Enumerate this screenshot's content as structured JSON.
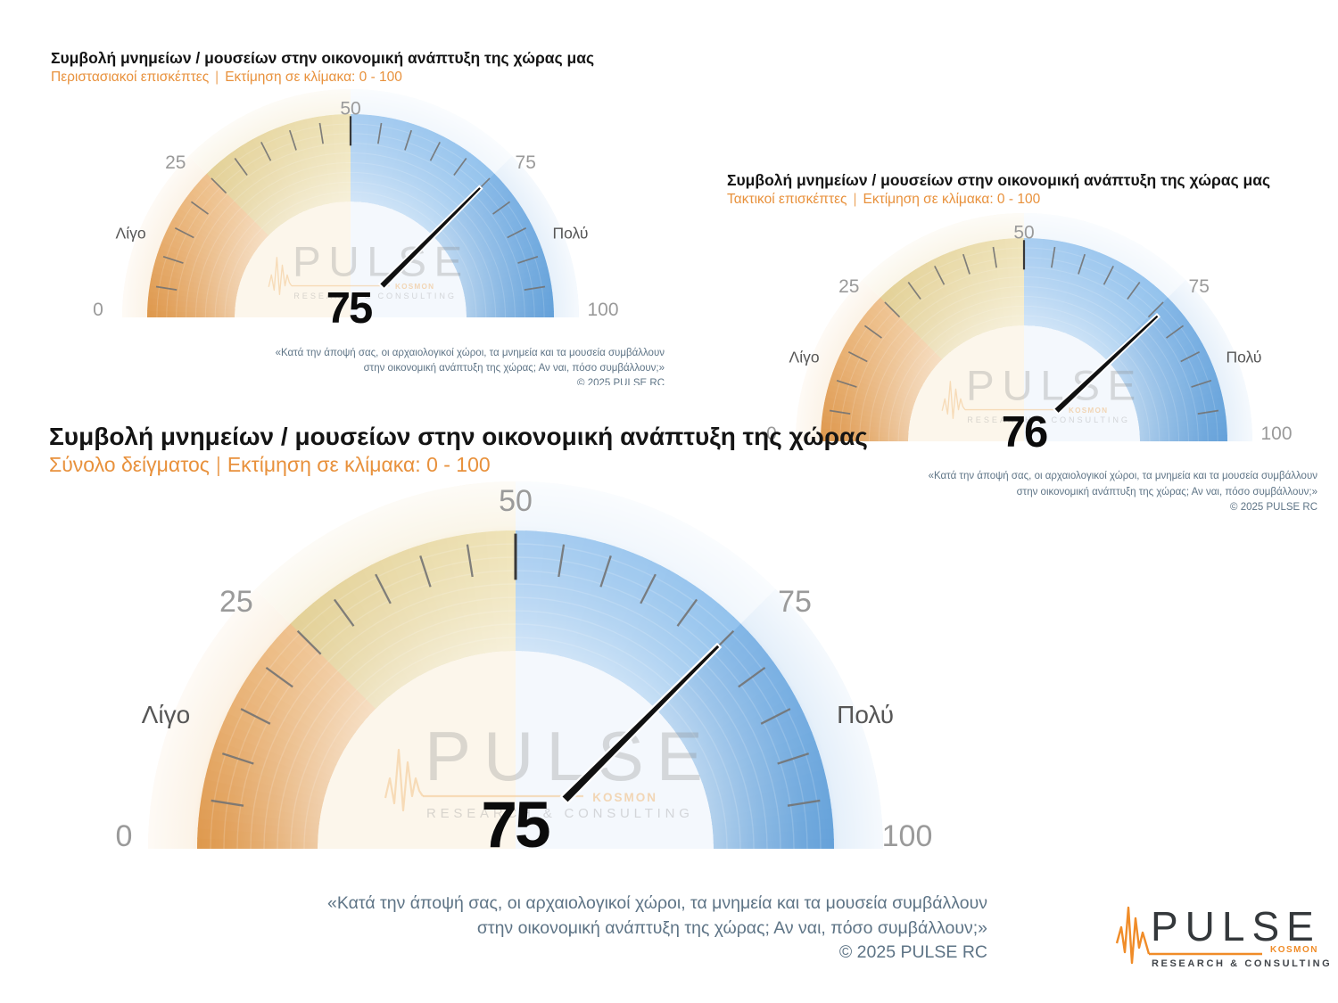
{
  "ui": {
    "subtitle_separator": "|"
  },
  "watermark": {
    "brand": "PULSE",
    "sub": "KOSMON",
    "tagline": "RESEARCH & CONSULTING"
  },
  "logo": {
    "brand": "PULSE",
    "sub": "KOSMON",
    "tagline": "RESEARCH & CONSULTING",
    "accent_color": "#f08c28",
    "text_color": "#34383b"
  },
  "footnote": {
    "line1": "«Κατά την άποψή σας, οι αρχαιολογικοί χώροι, τα μνημεία και τα μουσεία συμβάλλουν",
    "line2": "στην οικονομική ανάπτυξη της χώρας; Αν ναι, πόσο συμβάλλουν;»",
    "line3": "©  2025  PULSE RC"
  },
  "style": {
    "title_color": "#141414",
    "subtitle_color": "#e8913c",
    "footnote_color": "#5e7486",
    "value_color": "#0b0b0b",
    "needle_color": "#111111",
    "tick_color": "#737373",
    "major_tick_color": "#383838",
    "axis_label_color": "#9a9a9a",
    "end_label_color": "#565656",
    "interior_left": "#fcf6eb",
    "interior_right": "#f4f8fd",
    "band_stops": [
      [
        0,
        "#dd9446"
      ],
      [
        24.999,
        "#eec08b"
      ],
      [
        25,
        "#e2cf93"
      ],
      [
        49.999,
        "#eee2b6"
      ],
      [
        50,
        "#a6ccf0"
      ],
      [
        74.999,
        "#8fc0ec"
      ],
      [
        75,
        "#7eb3e5"
      ],
      [
        100,
        "#5f9ed8"
      ]
    ],
    "pale_segments": [
      {
        "from": 0,
        "to": 25,
        "color": "#fbf0e1"
      },
      {
        "from": 25,
        "to": 50,
        "color": "#f9f3e3"
      },
      {
        "from": 50,
        "to": 75,
        "color": "#eef5fc"
      },
      {
        "from": 75,
        "to": 100,
        "color": "#dfecf9"
      }
    ]
  },
  "chart_data": [
    {
      "type": "gauge",
      "title": "Συμβολή μνημείων / μουσείων στην οικονομική ανάπτυξη της χώρας μας",
      "group_label": "Περιστασιακοί επισκέπτες",
      "scale_label": "Εκτίμηση σε κλίμακα:  0 - 100",
      "value": 75,
      "min": 0,
      "max": 100,
      "axis_labels": [
        "0",
        "25",
        "50",
        "75",
        "100"
      ],
      "minor_tick_step": 5,
      "end_labels": {
        "low": "Λίγο",
        "high": "Πολύ"
      },
      "segments": [
        {
          "from": 0,
          "to": 25,
          "color": "orange"
        },
        {
          "from": 25,
          "to": 50,
          "color": "wheat"
        },
        {
          "from": 50,
          "to": 75,
          "color": "light-blue"
        },
        {
          "from": 75,
          "to": 100,
          "color": "blue"
        }
      ]
    },
    {
      "type": "gauge",
      "title": "Συμβολή μνημείων / μουσείων στην οικονομική ανάπτυξη της χώρας μας",
      "group_label": "Τακτικοί επισκέπτες",
      "scale_label": "Εκτίμηση σε κλίμακα:  0 - 100",
      "value": 76,
      "min": 0,
      "max": 100,
      "axis_labels": [
        "0",
        "25",
        "50",
        "75",
        "100"
      ],
      "minor_tick_step": 5,
      "end_labels": {
        "low": "Λίγο",
        "high": "Πολύ"
      },
      "segments": [
        {
          "from": 0,
          "to": 25,
          "color": "orange"
        },
        {
          "from": 25,
          "to": 50,
          "color": "wheat"
        },
        {
          "from": 50,
          "to": 75,
          "color": "light-blue"
        },
        {
          "from": 75,
          "to": 100,
          "color": "blue"
        }
      ]
    },
    {
      "type": "gauge",
      "title": "Συμβολή μνημείων / μουσείων στην οικονομική ανάπτυξη της χώρας",
      "group_label": "Σύνολο δείγματος",
      "scale_label": "Εκτίμηση σε κλίμακα:  0 - 100",
      "value": 75,
      "min": 0,
      "max": 100,
      "axis_labels": [
        "0",
        "25",
        "50",
        "75",
        "100"
      ],
      "minor_tick_step": 5,
      "end_labels": {
        "low": "Λίγο",
        "high": "Πολύ"
      },
      "segments": [
        {
          "from": 0,
          "to": 25,
          "color": "orange"
        },
        {
          "from": 25,
          "to": 50,
          "color": "wheat"
        },
        {
          "from": 50,
          "to": 75,
          "color": "light-blue"
        },
        {
          "from": 75,
          "to": 100,
          "color": "blue"
        }
      ]
    }
  ]
}
